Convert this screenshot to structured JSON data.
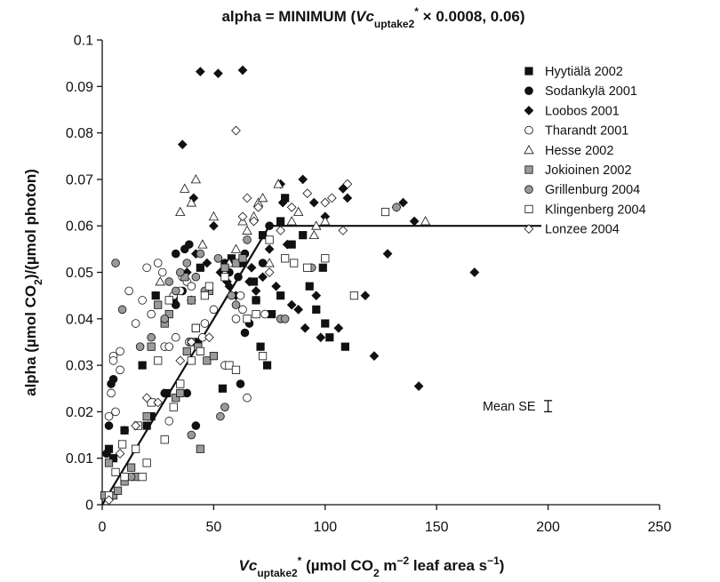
{
  "chart_data": {
    "type": "scatter",
    "title_parts": [
      "alpha = MINIMUM (",
      "Vc",
      "uptake2",
      "*",
      " × 0.0008, 0.06)"
    ],
    "xlabel_parts": [
      "Vc",
      "uptake2",
      "*",
      " (µmol CO",
      "2",
      " m",
      "−2",
      " leaf area s",
      "−1",
      ")"
    ],
    "ylabel_parts": [
      "alpha (µmol CO",
      "2",
      ")/(µmol photon)"
    ],
    "xlim": [
      0,
      250
    ],
    "ylim": [
      0,
      0.1
    ],
    "x_ticks": [
      "0",
      "50",
      "100",
      "150",
      "200",
      "250"
    ],
    "y_ticks": [
      "0",
      "0.01",
      "0.02",
      "0.03",
      "0.04",
      "0.05",
      "0.06",
      "0.07",
      "0.08",
      "0.09",
      "0.1"
    ],
    "grid": false,
    "legend_position": "top-right",
    "model_line": {
      "x": [
        0,
        75,
        197
      ],
      "y": [
        0,
        0.06,
        0.06
      ]
    },
    "annotation": {
      "text": "Mean SE",
      "x": 200,
      "y": 0.0212,
      "err": 0.0012
    },
    "series": [
      {
        "name": "Hyytiälä 2002",
        "marker": "square",
        "fill": "#111111",
        "points": [
          [
            3,
            0.012
          ],
          [
            5,
            0.01
          ],
          [
            10,
            0.016
          ],
          [
            18,
            0.03
          ],
          [
            20,
            0.017
          ],
          [
            22,
            0.019
          ],
          [
            24,
            0.045
          ],
          [
            29,
            0.024
          ],
          [
            32,
            0.044
          ],
          [
            43,
            0.035
          ],
          [
            44,
            0.051
          ],
          [
            54,
            0.025
          ],
          [
            58,
            0.053
          ],
          [
            63,
            0.052
          ],
          [
            68,
            0.048
          ],
          [
            69,
            0.044
          ],
          [
            71,
            0.034
          ],
          [
            72,
            0.058
          ],
          [
            74,
            0.03
          ],
          [
            76,
            0.041
          ],
          [
            80,
            0.045
          ],
          [
            80,
            0.061
          ],
          [
            82,
            0.066
          ],
          [
            85,
            0.056
          ],
          [
            90,
            0.058
          ],
          [
            93,
            0.047
          ],
          [
            96,
            0.042
          ],
          [
            99,
            0.051
          ],
          [
            100,
            0.039
          ],
          [
            102,
            0.036
          ],
          [
            109,
            0.034
          ]
        ]
      },
      {
        "name": "Sodankylä 2001",
        "marker": "circle",
        "fill": "#111111",
        "points": [
          [
            2,
            0.011
          ],
          [
            3,
            0.017
          ],
          [
            4,
            0.026
          ],
          [
            5,
            0.027
          ],
          [
            10,
            0.016
          ],
          [
            22,
            0.019
          ],
          [
            28,
            0.024
          ],
          [
            33,
            0.054
          ],
          [
            33,
            0.043
          ],
          [
            36,
            0.046
          ],
          [
            37,
            0.055
          ],
          [
            38,
            0.024
          ],
          [
            39,
            0.056
          ],
          [
            42,
            0.017
          ],
          [
            55,
            0.052
          ],
          [
            57,
            0.05
          ],
          [
            61,
            0.049
          ],
          [
            62,
            0.026
          ],
          [
            64,
            0.037
          ],
          [
            64,
            0.054
          ],
          [
            66,
            0.039
          ],
          [
            69,
            0.044
          ],
          [
            72,
            0.052
          ],
          [
            75,
            0.06
          ]
        ]
      },
      {
        "name": "Loobos 2001",
        "marker": "diamond",
        "fill": "#111111",
        "points": [
          [
            36,
            0.0775
          ],
          [
            38,
            0.05
          ],
          [
            40,
            0.044
          ],
          [
            41,
            0.066
          ],
          [
            42,
            0.054
          ],
          [
            44,
            0.0932
          ],
          [
            47,
            0.052
          ],
          [
            50,
            0.06
          ],
          [
            52,
            0.0928
          ],
          [
            53,
            0.05
          ],
          [
            56,
            0.048
          ],
          [
            57,
            0.047
          ],
          [
            60,
            0.045
          ],
          [
            62,
            0.052
          ],
          [
            63,
            0.0935
          ],
          [
            66,
            0.048
          ],
          [
            67,
            0.051
          ],
          [
            69,
            0.046
          ],
          [
            72,
            0.049
          ],
          [
            75,
            0.055
          ],
          [
            78,
            0.047
          ],
          [
            80,
            0.069
          ],
          [
            81,
            0.065
          ],
          [
            83,
            0.056
          ],
          [
            85,
            0.043
          ],
          [
            88,
            0.042
          ],
          [
            90,
            0.07
          ],
          [
            91,
            0.038
          ],
          [
            95,
            0.065
          ],
          [
            96,
            0.045
          ],
          [
            98,
            0.036
          ],
          [
            100,
            0.062
          ],
          [
            106,
            0.038
          ],
          [
            108,
            0.068
          ],
          [
            110,
            0.066
          ],
          [
            118,
            0.045
          ],
          [
            122,
            0.032
          ],
          [
            128,
            0.054
          ],
          [
            132,
            0.064
          ],
          [
            135,
            0.065
          ],
          [
            140,
            0.061
          ],
          [
            142,
            0.0255
          ],
          [
            167,
            0.05
          ]
        ]
      },
      {
        "name": "Tharandt 2001",
        "marker": "circle",
        "fill": "#ffffff",
        "points": [
          [
            3,
            0.019
          ],
          [
            4,
            0.024
          ],
          [
            5,
            0.032
          ],
          [
            5,
            0.031
          ],
          [
            6,
            0.02
          ],
          [
            8,
            0.029
          ],
          [
            8,
            0.033
          ],
          [
            10,
            0.006
          ],
          [
            12,
            0.046
          ],
          [
            15,
            0.039
          ],
          [
            18,
            0.044
          ],
          [
            20,
            0.051
          ],
          [
            22,
            0.041
          ],
          [
            25,
            0.052
          ],
          [
            27,
            0.05
          ],
          [
            28,
            0.034
          ],
          [
            30,
            0.034
          ],
          [
            30,
            0.018
          ],
          [
            32,
            0.045
          ],
          [
            33,
            0.036
          ],
          [
            35,
            0.046
          ],
          [
            36,
            0.049
          ],
          [
            38,
            0.048
          ],
          [
            39,
            0.035
          ],
          [
            40,
            0.047
          ],
          [
            45,
            0.036
          ],
          [
            46,
            0.039
          ],
          [
            50,
            0.042
          ],
          [
            55,
            0.03
          ],
          [
            60,
            0.04
          ],
          [
            62,
            0.045
          ],
          [
            63,
            0.042
          ],
          [
            65,
            0.023
          ],
          [
            73,
            0.041
          ]
        ]
      },
      {
        "name": "Hesse 2002",
        "marker": "triangle",
        "fill": "#ffffff",
        "points": [
          [
            26,
            0.048
          ],
          [
            35,
            0.063
          ],
          [
            37,
            0.068
          ],
          [
            40,
            0.065
          ],
          [
            42,
            0.07
          ],
          [
            45,
            0.056
          ],
          [
            50,
            0.062
          ],
          [
            55,
            0.05
          ],
          [
            57,
            0.052
          ],
          [
            60,
            0.055
          ],
          [
            63,
            0.061
          ],
          [
            65,
            0.059
          ],
          [
            68,
            0.062
          ],
          [
            70,
            0.065
          ],
          [
            72,
            0.066
          ],
          [
            75,
            0.052
          ],
          [
            79,
            0.069
          ],
          [
            85,
            0.061
          ],
          [
            88,
            0.063
          ],
          [
            95,
            0.058
          ],
          [
            96,
            0.06
          ],
          [
            100,
            0.061
          ],
          [
            145,
            0.061
          ]
        ]
      },
      {
        "name": "Jokioinen 2002",
        "marker": "square",
        "fill": "#9a9a9a",
        "points": [
          [
            1,
            0.002
          ],
          [
            3,
            0.009
          ],
          [
            5,
            0.002
          ],
          [
            7,
            0.003
          ],
          [
            10,
            0.005
          ],
          [
            13,
            0.008
          ],
          [
            15,
            0.006
          ],
          [
            20,
            0.019
          ],
          [
            22,
            0.034
          ],
          [
            25,
            0.043
          ],
          [
            28,
            0.039
          ],
          [
            30,
            0.041
          ],
          [
            33,
            0.023
          ],
          [
            35,
            0.024
          ],
          [
            37,
            0.049
          ],
          [
            38,
            0.033
          ],
          [
            40,
            0.035
          ],
          [
            40,
            0.044
          ],
          [
            42,
            0.038
          ],
          [
            43,
            0.034
          ],
          [
            44,
            0.012
          ],
          [
            47,
            0.031
          ],
          [
            48,
            0.046
          ],
          [
            50,
            0.032
          ],
          [
            55,
            0.051
          ],
          [
            60,
            0.052
          ],
          [
            63,
            0.053
          ]
        ]
      },
      {
        "name": "Grillenburg 2004",
        "marker": "circle",
        "fill": "#9a9a9a",
        "points": [
          [
            6,
            0.052
          ],
          [
            9,
            0.042
          ],
          [
            13,
            0.006
          ],
          [
            17,
            0.034
          ],
          [
            22,
            0.036
          ],
          [
            28,
            0.04
          ],
          [
            30,
            0.048
          ],
          [
            33,
            0.046
          ],
          [
            35,
            0.05
          ],
          [
            38,
            0.052
          ],
          [
            40,
            0.015
          ],
          [
            42,
            0.049
          ],
          [
            44,
            0.054
          ],
          [
            46,
            0.046
          ],
          [
            52,
            0.053
          ],
          [
            53,
            0.019
          ],
          [
            55,
            0.021
          ],
          [
            58,
            0.045
          ],
          [
            60,
            0.043
          ],
          [
            65,
            0.057
          ],
          [
            80,
            0.04
          ],
          [
            82,
            0.04
          ],
          [
            94,
            0.051
          ],
          [
            132,
            0.064
          ]
        ]
      },
      {
        "name": "Klingenberg 2004",
        "marker": "square",
        "fill": "#ffffff",
        "points": [
          [
            3,
            0.002
          ],
          [
            6,
            0.007
          ],
          [
            9,
            0.013
          ],
          [
            10,
            0.006
          ],
          [
            15,
            0.012
          ],
          [
            16,
            0.017
          ],
          [
            18,
            0.006
          ],
          [
            20,
            0.009
          ],
          [
            22,
            0.022
          ],
          [
            25,
            0.031
          ],
          [
            28,
            0.014
          ],
          [
            30,
            0.044
          ],
          [
            32,
            0.021
          ],
          [
            35,
            0.026
          ],
          [
            40,
            0.031
          ],
          [
            42,
            0.038
          ],
          [
            44,
            0.033
          ],
          [
            46,
            0.045
          ],
          [
            48,
            0.047
          ],
          [
            55,
            0.049
          ],
          [
            57,
            0.03
          ],
          [
            60,
            0.029
          ],
          [
            65,
            0.04
          ],
          [
            69,
            0.041
          ],
          [
            72,
            0.032
          ],
          [
            75,
            0.057
          ],
          [
            82,
            0.053
          ],
          [
            86,
            0.052
          ],
          [
            92,
            0.051
          ],
          [
            100,
            0.053
          ],
          [
            113,
            0.045
          ],
          [
            127,
            0.063
          ]
        ]
      },
      {
        "name": "Lonzee 2004",
        "marker": "diamond",
        "fill": "#ffffff",
        "points": [
          [
            3,
            0.001
          ],
          [
            8,
            0.011
          ],
          [
            15,
            0.017
          ],
          [
            20,
            0.023
          ],
          [
            25,
            0.022
          ],
          [
            35,
            0.031
          ],
          [
            40,
            0.035
          ],
          [
            48,
            0.036
          ],
          [
            60,
            0.0805
          ],
          [
            63,
            0.062
          ],
          [
            65,
            0.066
          ],
          [
            68,
            0.061
          ],
          [
            70,
            0.064
          ],
          [
            75,
            0.05
          ],
          [
            80,
            0.059
          ],
          [
            85,
            0.064
          ],
          [
            92,
            0.067
          ],
          [
            100,
            0.065
          ],
          [
            103,
            0.066
          ],
          [
            108,
            0.059
          ],
          [
            110,
            0.069
          ]
        ]
      }
    ]
  }
}
